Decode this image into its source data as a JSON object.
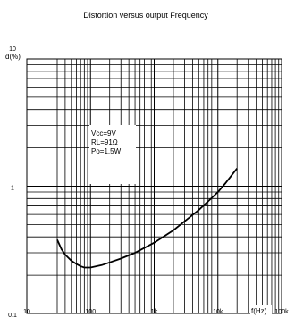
{
  "chart_data": {
    "type": "line",
    "title": "Distortion versus output Frequency",
    "xlabel": "f(Hz)",
    "ylabel": "d(%)",
    "x_scale": "log",
    "y_scale": "log",
    "xlim": [
      10,
      100000
    ],
    "ylim": [
      0.1,
      10
    ],
    "grid": true,
    "xticks": [
      {
        "value": 10,
        "label": "10"
      },
      {
        "value": 100,
        "label": "100"
      },
      {
        "value": 1000,
        "label": "1k"
      },
      {
        "value": 10000,
        "label": "10k"
      },
      {
        "value": 100000,
        "label": "100k"
      }
    ],
    "yticks": [
      {
        "value": 10,
        "label": "10"
      },
      {
        "value": 1,
        "label": "1"
      },
      {
        "value": 0.1,
        "label": "0.1"
      }
    ],
    "annotation": [
      "Vcc=9V",
      "RL=91Ω",
      "Po=1.5W"
    ],
    "series": [
      {
        "x": [
          30,
          35,
          40,
          50,
          60,
          70,
          80,
          100,
          150,
          200,
          300,
          500,
          1000,
          2000,
          3000,
          5000,
          7000,
          10000,
          13000,
          15000,
          20000
        ],
        "y": [
          0.38,
          0.32,
          0.29,
          0.26,
          0.245,
          0.235,
          0.23,
          0.23,
          0.24,
          0.252,
          0.27,
          0.3,
          0.36,
          0.45,
          0.53,
          0.65,
          0.76,
          0.9,
          1.05,
          1.15,
          1.38
        ]
      }
    ],
    "colors": {
      "line": "#000000",
      "grid": "#000000",
      "text": "#000000"
    }
  }
}
